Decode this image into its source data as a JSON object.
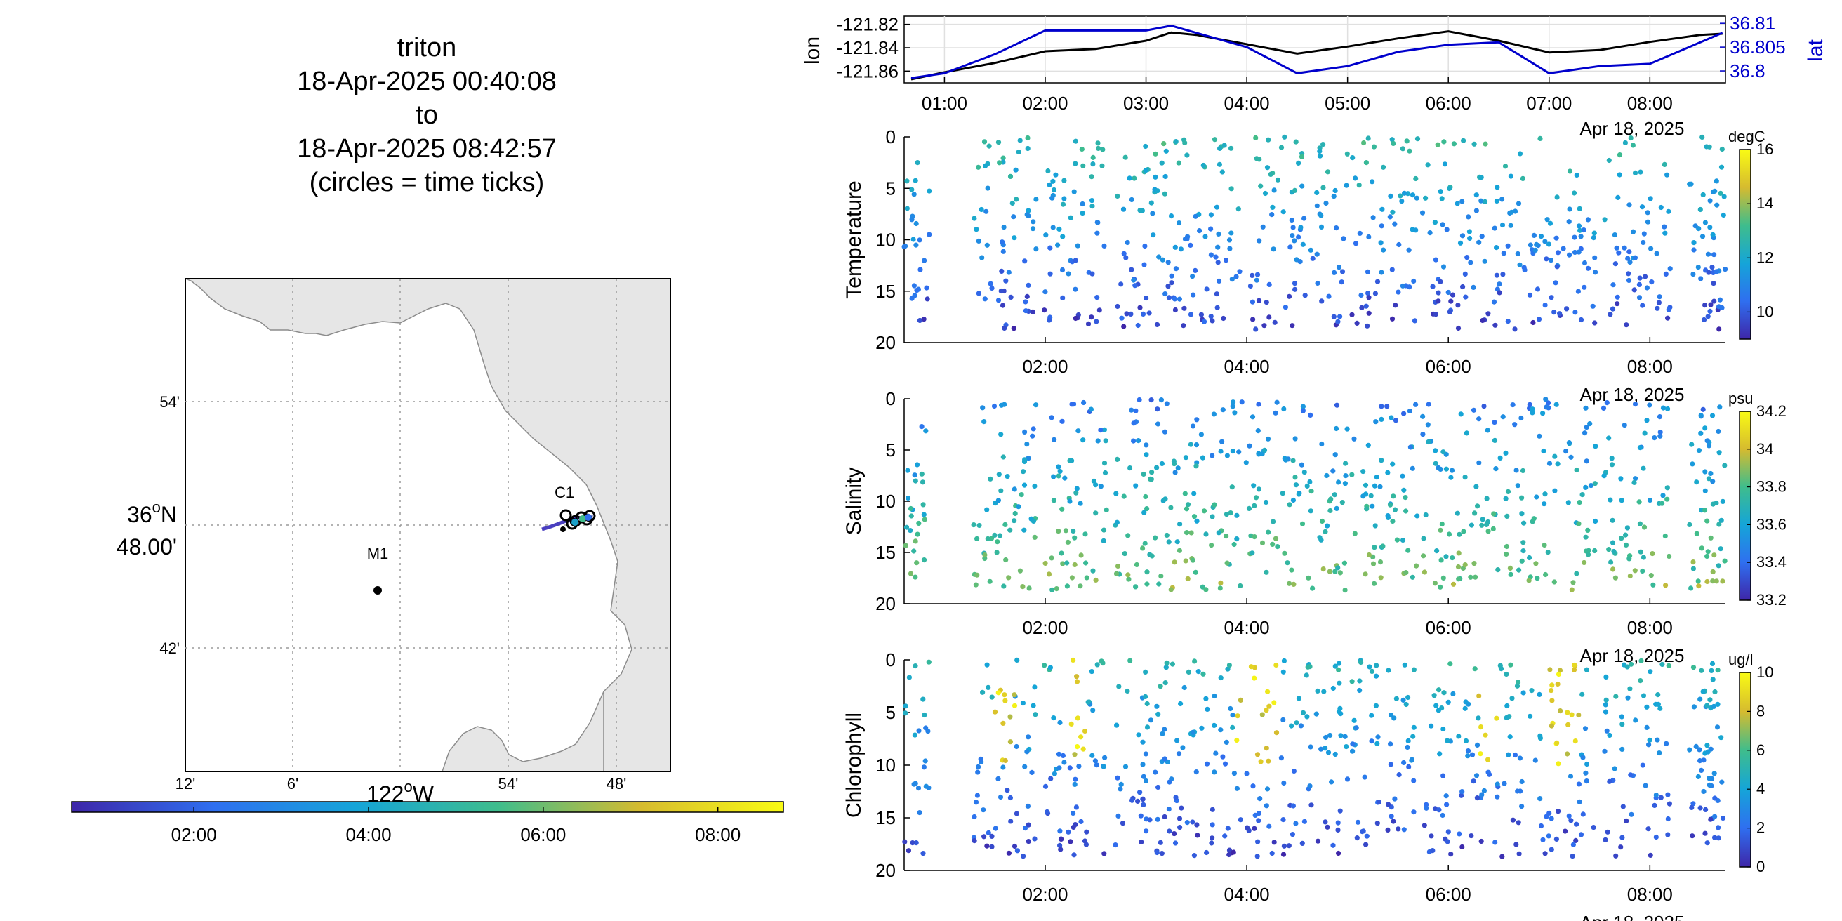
{
  "figure": {
    "title_lines": [
      "triton",
      "18-Apr-2025 00:40:08",
      "to",
      "18-Apr-2025 08:42:57",
      "(circles = time ticks)"
    ]
  },
  "map": {
    "lat_ticks": [
      "54'",
      "42'"
    ],
    "lat_center_deg": "36",
    "lat_center_sup": "o",
    "lat_center_hem": "N",
    "lat_center_min": "48.00'",
    "lon_ticks": [
      "12'",
      "6'",
      "54'",
      "48'"
    ],
    "lon_center_deg": "122",
    "lon_center_sup": "o",
    "lon_center_hem": "W",
    "stations": [
      {
        "name": "C1",
        "lat": 36.797,
        "lon": -121.847
      },
      {
        "name": "M1",
        "lat": 36.747,
        "lon": -122.022
      }
    ],
    "track_colorbar_ticks": [
      "02:00",
      "04:00",
      "06:00",
      "08:00"
    ],
    "colors": {
      "land": "#e6e6e6",
      "coast": "#8c8c8c",
      "grid": "#9a9a9a"
    }
  },
  "charts": {
    "position": {
      "ylabel_left": "lon",
      "ylabel_right": "lat",
      "yticks_left": [
        "-121.82",
        "-121.84",
        "-121.86"
      ],
      "yticks_right": [
        "36.81",
        "36.805",
        "36.8"
      ],
      "xticks": [
        "01:00",
        "02:00",
        "03:00",
        "04:00",
        "05:00",
        "06:00",
        "07:00",
        "08:00"
      ],
      "date_label": "Apr 18, 2025",
      "lon_color": "#000000",
      "lat_color": "#0000cc"
    },
    "temperature": {
      "ylabel": "Temperature",
      "unit": "degC",
      "cbar_ticks": [
        "16",
        "14",
        "12",
        "10"
      ],
      "cbar_range": [
        9,
        16
      ]
    },
    "salinity": {
      "ylabel": "Salinity",
      "unit": "psu",
      "cbar_ticks": [
        "34.2",
        "34",
        "33.8",
        "33.6",
        "33.4",
        "33.2"
      ],
      "cbar_range": [
        33.2,
        34.2
      ]
    },
    "chlorophyll": {
      "ylabel": "Chlorophyll",
      "unit": "ug/l",
      "cbar_ticks": [
        "10",
        "8",
        "6",
        "4",
        "2",
        "0"
      ],
      "cbar_range": [
        0,
        10
      ]
    },
    "depth_ticks": [
      "0",
      "5",
      "10",
      "15",
      "20"
    ],
    "time_ticks": [
      "02:00",
      "04:00",
      "06:00",
      "08:00"
    ],
    "date_label": "Apr 18, 2025"
  },
  "chart_data": [
    {
      "type": "line",
      "x_unit": "hours (18-Apr-2025)",
      "x": [
        0.67,
        1.0,
        1.5,
        2.0,
        2.5,
        3.0,
        3.25,
        3.5,
        4.0,
        4.5,
        5.0,
        5.5,
        6.0,
        6.5,
        7.0,
        7.5,
        8.0,
        8.5,
        8.72
      ],
      "series": [
        {
          "name": "lon",
          "axis": "left",
          "values": [
            -121.867,
            -121.861,
            -121.853,
            -121.843,
            -121.841,
            -121.834,
            -121.827,
            -121.829,
            -121.837,
            -121.845,
            -121.839,
            -121.832,
            -121.826,
            -121.834,
            -121.844,
            -121.842,
            -121.835,
            -121.829,
            -121.828
          ]
        },
        {
          "name": "lat",
          "axis": "right",
          "values": [
            36.7985,
            36.7995,
            36.8035,
            36.8085,
            36.8085,
            36.8085,
            36.8095,
            36.808,
            36.805,
            36.7995,
            36.801,
            36.804,
            36.8055,
            36.806,
            36.7995,
            36.801,
            36.8015,
            36.806,
            36.808
          ]
        }
      ],
      "ylim_left": [
        -121.87,
        -121.813
      ],
      "ylim_right": [
        36.7975,
        36.8115
      ],
      "xlim": [
        0.6,
        8.75
      ]
    },
    {
      "type": "scatter",
      "name": "Temperature",
      "x_unit": "hours (18-Apr-2025)",
      "y_unit": "depth (reversed)",
      "ylim": [
        20,
        0
      ],
      "xlim": [
        0.6,
        8.75
      ],
      "color_range": [
        9,
        16
      ],
      "colormap": "parula",
      "profiles": [
        {
          "t": 0.68,
          "c": 0
        },
        {
          "t": 1.4,
          "c": 1
        },
        {
          "t": 2.1,
          "c": 2
        },
        {
          "t": 2.55,
          "c": 0
        },
        {
          "t": 2.95,
          "c": 1
        },
        {
          "t": 3.45,
          "c": 2
        },
        {
          "t": 3.9,
          "c": 0
        },
        {
          "t": 4.45,
          "c": 1
        },
        {
          "t": 4.9,
          "c": 2
        },
        {
          "t": 5.45,
          "c": 0
        },
        {
          "t": 6.0,
          "c": 1
        },
        {
          "t": 6.55,
          "c": 2
        },
        {
          "t": 7.05,
          "c": 0
        },
        {
          "t": 7.65,
          "c": 1
        },
        {
          "t": 8.55,
          "c": 2
        }
      ],
      "surface": 13.0,
      "deep": 9.5
    },
    {
      "type": "scatter",
      "name": "Salinity",
      "x_unit": "hours (18-Apr-2025)",
      "y_unit": "depth (reversed)",
      "ylim": [
        20,
        0
      ],
      "xlim": [
        0.6,
        8.75
      ],
      "color_range": [
        33.2,
        34.2
      ],
      "colormap": "parula",
      "surface": 33.35,
      "deep": 33.75
    },
    {
      "type": "scatter",
      "name": "Chlorophyll",
      "x_unit": "hours (18-Apr-2025)",
      "y_unit": "depth (reversed)",
      "ylim": [
        20,
        0
      ],
      "xlim": [
        0.6,
        8.75
      ],
      "color_range": [
        0,
        10
      ],
      "colormap": "parula",
      "surface": 5.0,
      "deep": 1.0,
      "bloom_windows": [
        [
          1.5,
          1.7
        ],
        [
          2.2,
          2.4
        ],
        [
          3.9,
          4.3
        ],
        [
          6.3,
          6.5
        ],
        [
          7.0,
          7.3
        ]
      ]
    }
  ]
}
